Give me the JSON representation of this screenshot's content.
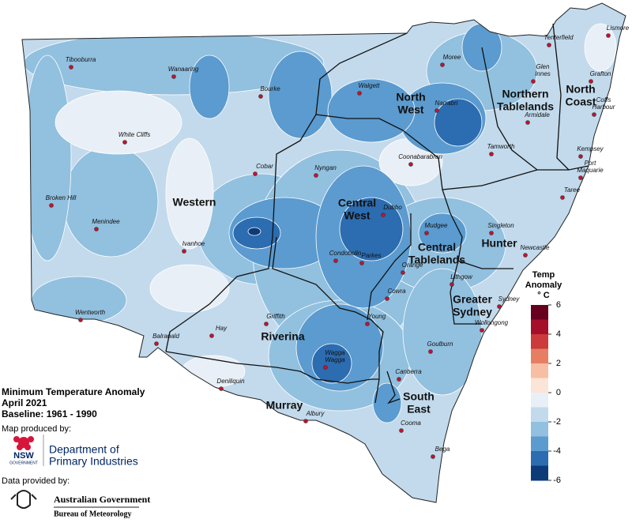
{
  "title": {
    "lines": [
      "Minimum Temperature Anomaly",
      "April 2021",
      "Baseline: 1961 - 1990"
    ]
  },
  "credits": {
    "produced_by": "Map produced by:",
    "nsw_logo": [
      "NSW",
      "GOVERNMENT"
    ],
    "department": [
      "Department of",
      "Primary Industries"
    ],
    "data_by": "Data provided by:",
    "bom": [
      "Australian Government",
      "Bureau of Meteorology"
    ]
  },
  "legend": {
    "title": [
      "Temp",
      "Anomaly",
      "° C"
    ],
    "ticks": [
      6,
      4,
      2,
      0,
      -2,
      -4,
      -6
    ],
    "colors": [
      "#67001f",
      "#a50f2a",
      "#cc3a3c",
      "#e67e64",
      "#f7bea3",
      "#fbe4d8",
      "#e9eff6",
      "#c2daec",
      "#92c0df",
      "#5b9bcf",
      "#2c6cb0",
      "#0c3b78"
    ]
  },
  "regions": [
    [
      "Western"
    ],
    [
      "North",
      "West"
    ],
    [
      "Northern",
      "Tablelands"
    ],
    [
      "North",
      "Coast"
    ],
    [
      "Central",
      "West"
    ],
    [
      "Central",
      "Tablelands"
    ],
    [
      "Hunter"
    ],
    [
      "Greater",
      "Sydney"
    ],
    [
      "Riverina"
    ],
    [
      "Murray"
    ],
    [
      "South",
      "East"
    ]
  ],
  "towns": [
    [
      "Tibooburra"
    ],
    [
      "Wanaaring"
    ],
    [
      "Bourke"
    ],
    [
      "Walgett"
    ],
    [
      "Moree"
    ],
    [
      "Tenterfield"
    ],
    [
      "Lismore"
    ],
    [
      "Glen",
      "Innes"
    ],
    [
      "Grafton"
    ],
    [
      "Coffs",
      "Harbour"
    ],
    [
      "Armidale"
    ],
    [
      "Narrabri"
    ],
    [
      "White Cliffs"
    ],
    [
      "Coonabarabran"
    ],
    [
      "Tamworth"
    ],
    [
      "Kempsey"
    ],
    [
      "Port",
      "Maquarie"
    ],
    [
      "Cobar"
    ],
    [
      "Nyngan"
    ],
    [
      "Broken Hill"
    ],
    [
      "Menindee"
    ],
    [
      "Taree"
    ],
    [
      "Dubbo"
    ],
    [
      "Mudgee"
    ],
    [
      "Singleton"
    ],
    [
      "Ivanhoe"
    ],
    [
      "Condobolin"
    ],
    [
      "Parkes"
    ],
    [
      "Newcastle"
    ],
    [
      "Orange"
    ],
    [
      "Lithgow"
    ],
    [
      "Sydney"
    ],
    [
      "Cowra"
    ],
    [
      "Wentworth"
    ],
    [
      "Griffith"
    ],
    [
      "Young"
    ],
    [
      "Wollongong"
    ],
    [
      "Hay"
    ],
    [
      "Balranald"
    ],
    [
      "Goulburn"
    ],
    [
      "Wagga",
      "Wagga"
    ],
    [
      "Canberra"
    ],
    [
      "Deniliquin"
    ],
    [
      "Albury"
    ],
    [
      "Cooma"
    ],
    [
      "Bega"
    ]
  ]
}
